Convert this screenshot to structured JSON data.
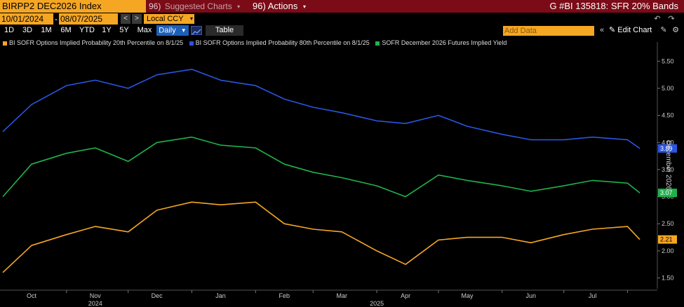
{
  "header": {
    "ticker": "BIRPP2 DEC2026 Index",
    "suggested_num": "96)",
    "suggested_label": "Suggested Charts",
    "actions_num": "96)",
    "actions_label": "Actions",
    "chart_title": "G #BI 135818: SFR 20% Bands"
  },
  "toolbar": {
    "start_date": "10/01/2024",
    "end_date": "08/07/2025",
    "date_sep": "-",
    "currency": "Local CCY",
    "timeframes": [
      "1D",
      "3D",
      "1M",
      "6M",
      "YTD",
      "1Y",
      "5Y",
      "Max"
    ],
    "frequency": "Daily",
    "table_label": "Table",
    "add_data_placeholder": "Add Data",
    "edit_chart_label": "Edit Chart"
  },
  "legend": [
    {
      "label": "BI SOFR Options Implied Probability 20th Percentile on 8/1/25",
      "color": "#f5a623"
    },
    {
      "label": "BI SOFR Options Implied Probability 80th Percentile on 8/1/25",
      "color": "#2a55e0"
    },
    {
      "label": "SOFR December 2026 Futures Implied Yield",
      "color": "#1fb34a"
    }
  ],
  "axis_title": "December 2026",
  "chart_data": {
    "type": "line",
    "x_months": [
      "Oct",
      "Nov",
      "Dec",
      "Jan",
      "Feb",
      "Mar",
      "Apr",
      "May",
      "Jun",
      "Jul"
    ],
    "x_years": [
      "2024",
      "2025"
    ],
    "x": [
      "2024-10-01",
      "2024-10-15",
      "2024-11-01",
      "2024-11-15",
      "2024-12-01",
      "2024-12-15",
      "2025-01-01",
      "2025-01-15",
      "2025-02-01",
      "2025-02-15",
      "2025-03-01",
      "2025-03-15",
      "2025-04-01",
      "2025-04-15",
      "2025-05-01",
      "2025-05-15",
      "2025-06-01",
      "2025-06-15",
      "2025-07-01",
      "2025-07-15",
      "2025-08-01",
      "2025-08-07"
    ],
    "y_ticks": [
      1.5,
      2.0,
      2.5,
      3.0,
      3.5,
      4.0,
      4.5,
      5.0,
      5.5
    ],
    "ylim": [
      1.3,
      5.75
    ],
    "series": [
      {
        "name": "BI SOFR Options Implied Probability 80th Percentile on 8/1/25",
        "color": "#2a55e0",
        "last_label": "3.89",
        "values": [
          4.2,
          4.7,
          5.05,
          5.15,
          5.0,
          5.25,
          5.35,
          5.15,
          5.05,
          4.8,
          4.65,
          4.55,
          4.4,
          4.35,
          4.5,
          4.3,
          4.15,
          4.05,
          4.05,
          4.1,
          4.05,
          3.89
        ]
      },
      {
        "name": "SOFR December 2026 Futures Implied Yield",
        "color": "#1fb34a",
        "last_label": "3.07",
        "values": [
          3.0,
          3.6,
          3.8,
          3.9,
          3.65,
          4.0,
          4.1,
          3.95,
          3.9,
          3.6,
          3.45,
          3.35,
          3.2,
          3.0,
          3.4,
          3.3,
          3.2,
          3.1,
          3.2,
          3.3,
          3.25,
          3.07
        ]
      },
      {
        "name": "BI SOFR Options Implied Probability 20th Percentile on 8/1/25",
        "color": "#f5a623",
        "last_label": "2.21",
        "values": [
          1.6,
          2.1,
          2.3,
          2.45,
          2.35,
          2.75,
          2.9,
          2.85,
          2.9,
          2.5,
          2.4,
          2.35,
          2.0,
          1.75,
          2.2,
          2.25,
          2.25,
          2.15,
          2.3,
          2.4,
          2.45,
          2.21
        ]
      }
    ]
  }
}
